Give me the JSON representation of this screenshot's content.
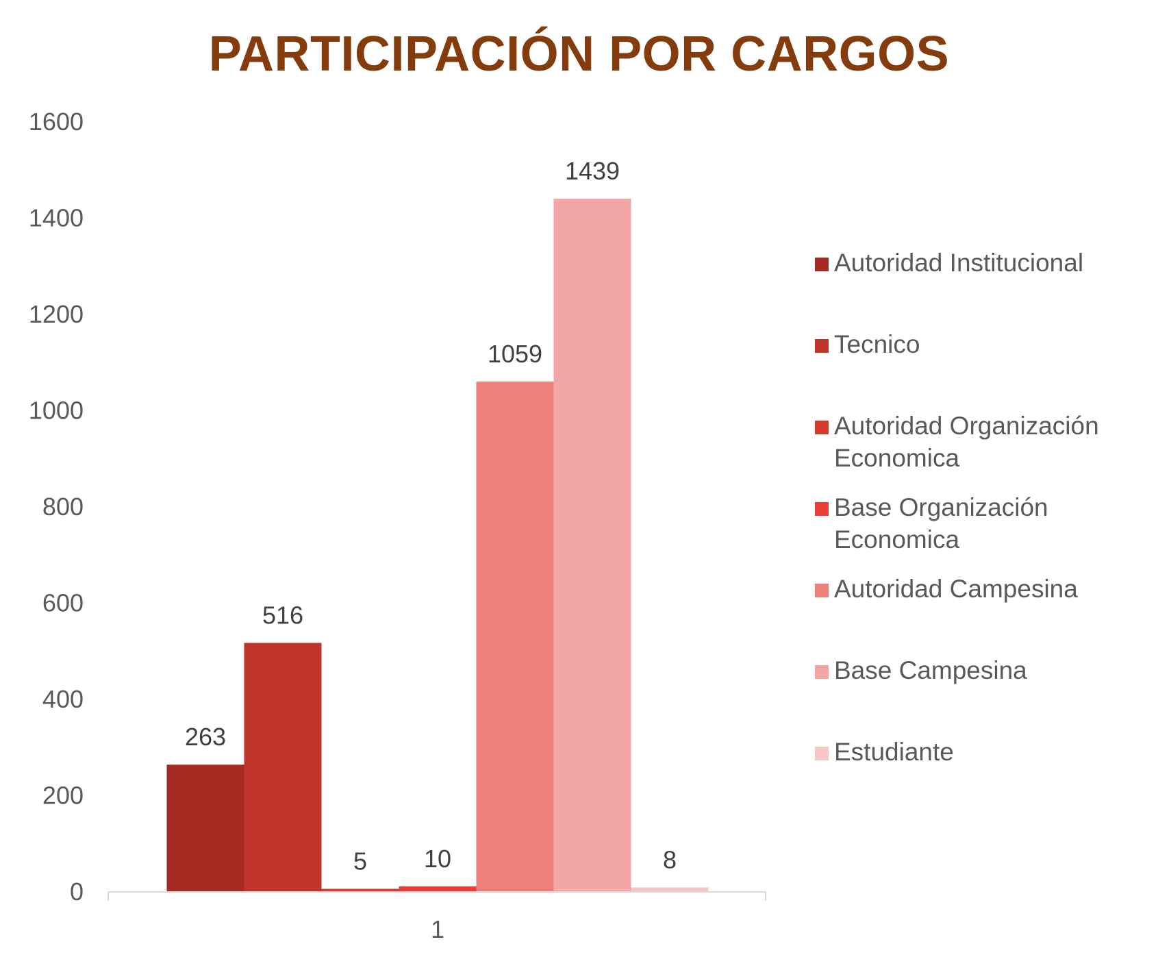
{
  "chart_data": {
    "type": "bar",
    "title": "PARTICIPACIÓN POR CARGOS",
    "categories": [
      "1"
    ],
    "series": [
      {
        "name": "Autoridad Institucional",
        "values": [
          263
        ],
        "color": "#A52A22"
      },
      {
        "name": "Tecnico",
        "values": [
          516
        ],
        "color": "#C0352B"
      },
      {
        "name": "Autoridad Organización Economica",
        "values": [
          5
        ],
        "color": "#D93A30"
      },
      {
        "name": "Base Organización Economica",
        "values": [
          10
        ],
        "color": "#E83E36"
      },
      {
        "name": "Autoridad Campesina",
        "values": [
          1059
        ],
        "color": "#EE807A"
      },
      {
        "name": "Base Campesina",
        "values": [
          1439
        ],
        "color": "#F2A7A6"
      },
      {
        "name": "Estudiante",
        "values": [
          8
        ],
        "color": "#F6C6C6"
      }
    ],
    "ylim": [
      0,
      1600
    ],
    "yticks": [
      0,
      200,
      400,
      600,
      800,
      1000,
      1200,
      1400,
      1600
    ],
    "xlabel": "",
    "ylabel": "",
    "grid": false,
    "legend_position": "right",
    "data_labels": true
  }
}
